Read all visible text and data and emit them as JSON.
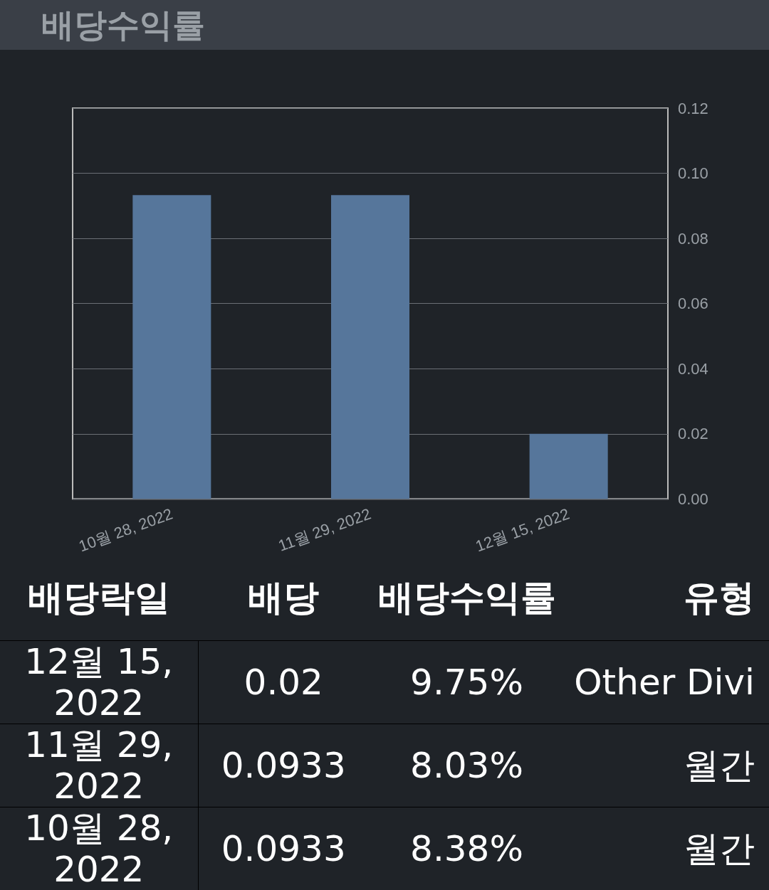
{
  "chart_data": {
    "type": "bar",
    "title": "배당수익률",
    "categories": [
      "10월 28, 2022",
      "11월 29, 2022",
      "12월 15, 2022"
    ],
    "values": [
      0.0933,
      0.0933,
      0.02
    ],
    "color": "#56769b",
    "ylim": [
      0,
      0.12
    ],
    "yticks": [
      {
        "value": 0,
        "label": "0.00"
      },
      {
        "value": 0.02,
        "label": "0.02"
      },
      {
        "value": 0.04,
        "label": "0.04"
      },
      {
        "value": 0.06,
        "label": "0.06"
      },
      {
        "value": 0.08,
        "label": "0.08"
      },
      {
        "value": 0.1,
        "label": "0.10"
      },
      {
        "value": 0.12,
        "label": "0.12"
      }
    ],
    "grid": "y",
    "annotations": [
      "배당락일",
      "배당",
      "배당수익률",
      "유형",
      "12월 15, 2022",
      "0.02",
      "9.75%",
      "Other Divi",
      "11월 29, 2022",
      "0.0933",
      "8.03%",
      "월간",
      "10월 28, 2022",
      "0.0933",
      "8.38%",
      "월간"
    ]
  }
}
